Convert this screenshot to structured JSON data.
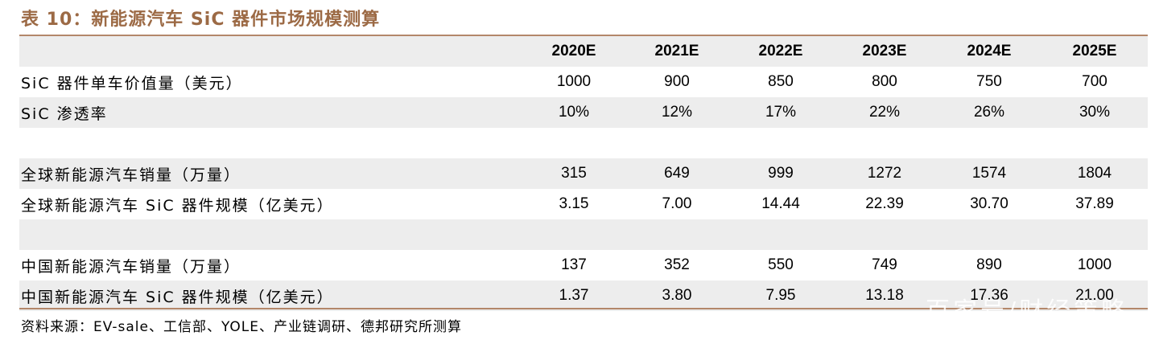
{
  "title": "表 10：新能源汽车 SiC 器件市场规模测算",
  "columns": [
    "2020E",
    "2021E",
    "2022E",
    "2023E",
    "2024E",
    "2025E"
  ],
  "rows": [
    {
      "label": "SiC 器件单车价值量（美元）",
      "values": [
        "1000",
        "900",
        "850",
        "800",
        "750",
        "700"
      ]
    },
    {
      "label": "SiC 渗透率",
      "values": [
        "10%",
        "12%",
        "17%",
        "22%",
        "26%",
        "30%"
      ]
    },
    {
      "label": "",
      "values": [
        "",
        "",
        "",
        "",
        "",
        ""
      ]
    },
    {
      "label": "全球新能源汽车销量（万量）",
      "values": [
        "315",
        "649",
        "999",
        "1272",
        "1574",
        "1804"
      ]
    },
    {
      "label": "全球新能源汽车 SiC 器件规模（亿美元）",
      "values": [
        "3.15",
        "7.00",
        "14.44",
        "22.39",
        "30.70",
        "37.89"
      ]
    },
    {
      "label": "",
      "values": [
        "",
        "",
        "",
        "",
        "",
        ""
      ]
    },
    {
      "label": "中国新能源汽车销量（万量）",
      "values": [
        "137",
        "352",
        "550",
        "749",
        "890",
        "1000"
      ]
    },
    {
      "label": "中国新能源汽车 SiC 器件规模（亿美元）",
      "values": [
        "1.37",
        "3.80",
        "7.95",
        "13.18",
        "17.36",
        "21.00"
      ]
    }
  ],
  "source": "资料来源：EV-sale、工信部、YOLE、产业链调研、德邦研究所测算",
  "watermark": "百家号/财经策略",
  "colors": {
    "title": "#9c6a45",
    "rule": "#b3876a",
    "shade": "#ededed"
  }
}
